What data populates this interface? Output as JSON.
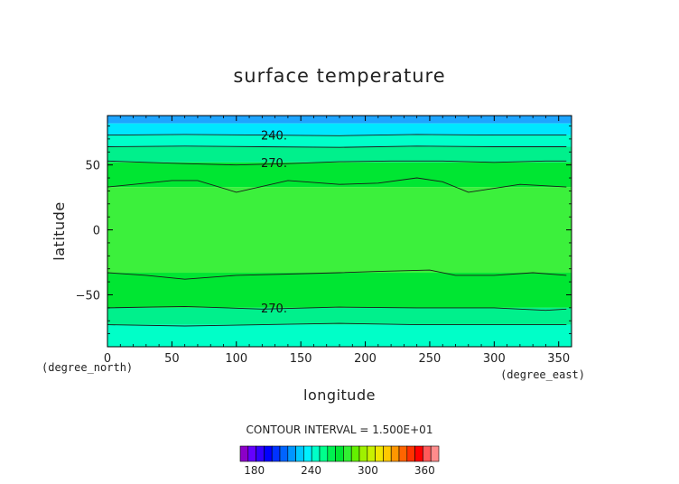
{
  "chart_data": {
    "type": "heatmap",
    "title": "surface temperature",
    "xlabel": "longitude",
    "ylabel": "latitude",
    "x_units": "(degree_east)",
    "y_units": "(degree_north)",
    "xlim": [
      0,
      360
    ],
    "ylim": [
      -90,
      88
    ],
    "x_ticks": [
      "0",
      "50",
      "100",
      "150",
      "200",
      "250",
      "300",
      "350"
    ],
    "y_ticks": [
      "-50",
      "0",
      "50"
    ],
    "y_tick_values": [
      -50,
      0,
      50
    ],
    "x_tick_values": [
      0,
      50,
      100,
      150,
      200,
      250,
      300,
      350
    ],
    "contour_interval_text": "CONTOUR INTERVAL = 1.500E+01",
    "contour_levels": [
      165,
      180,
      195,
      210,
      225,
      240,
      255,
      270,
      285,
      300,
      315,
      330,
      345,
      360,
      375
    ],
    "contour_labels": [
      {
        "text": "240.",
        "x": 118,
        "y": 73
      },
      {
        "text": "270.",
        "x": 118,
        "y": 52
      },
      {
        "text": "270.",
        "x": 118,
        "y": -60
      }
    ],
    "field_bands": [
      {
        "lat_top": 88,
        "lat_bottom": 82,
        "color": "#1ea4ff"
      },
      {
        "lat_top": 82,
        "lat_bottom": 73,
        "color": "#00e6ff"
      },
      {
        "lat_top": 73,
        "lat_bottom": 64,
        "color": "#00ffc8"
      },
      {
        "lat_top": 64,
        "lat_bottom": 52,
        "color": "#00f08c"
      },
      {
        "lat_top": 52,
        "lat_bottom": 33,
        "color": "#00e632"
      },
      {
        "lat_top": 33,
        "lat_bottom": -33,
        "color": "#3cf03c"
      },
      {
        "lat_top": -33,
        "lat_bottom": -60,
        "color": "#00e632"
      },
      {
        "lat_top": -60,
        "lat_bottom": -73,
        "color": "#00f08c"
      },
      {
        "lat_top": -73,
        "lat_bottom": -90,
        "color": "#00ffc8"
      }
    ],
    "contour_lines": [
      {
        "level": 240,
        "points": [
          [
            0,
            73
          ],
          [
            60,
            73.5
          ],
          [
            120,
            73
          ],
          [
            180,
            72.5
          ],
          [
            240,
            73.5
          ],
          [
            300,
            73
          ],
          [
            356,
            73
          ]
        ]
      },
      {
        "level": 255,
        "points": [
          [
            0,
            64
          ],
          [
            60,
            64.5
          ],
          [
            120,
            64
          ],
          [
            180,
            63.5
          ],
          [
            240,
            64.5
          ],
          [
            300,
            64
          ],
          [
            356,
            64
          ]
        ]
      },
      {
        "level": 270,
        "points": [
          [
            0,
            53
          ],
          [
            30,
            52
          ],
          [
            60,
            51
          ],
          [
            100,
            50
          ],
          [
            140,
            51
          ],
          [
            180,
            52.5
          ],
          [
            220,
            53
          ],
          [
            260,
            53
          ],
          [
            300,
            52
          ],
          [
            340,
            53
          ],
          [
            356,
            53
          ]
        ]
      },
      {
        "level": 285,
        "points": [
          [
            0,
            33
          ],
          [
            30,
            36
          ],
          [
            50,
            38
          ],
          [
            70,
            38
          ],
          [
            100,
            29
          ],
          [
            140,
            38
          ],
          [
            180,
            35
          ],
          [
            210,
            36
          ],
          [
            240,
            40
          ],
          [
            260,
            37
          ],
          [
            280,
            29
          ],
          [
            320,
            35
          ],
          [
            356,
            33
          ]
        ]
      },
      {
        "level": 285,
        "points": [
          [
            0,
            -33
          ],
          [
            30,
            -35
          ],
          [
            60,
            -38
          ],
          [
            100,
            -35
          ],
          [
            140,
            -34
          ],
          [
            180,
            -33
          ],
          [
            210,
            -32
          ],
          [
            250,
            -31
          ],
          [
            270,
            -35
          ],
          [
            300,
            -35
          ],
          [
            330,
            -33
          ],
          [
            356,
            -35
          ]
        ]
      },
      {
        "level": 270,
        "points": [
          [
            0,
            -60
          ],
          [
            60,
            -59
          ],
          [
            120,
            -61
          ],
          [
            180,
            -59.5
          ],
          [
            240,
            -60
          ],
          [
            300,
            -60
          ],
          [
            340,
            -62
          ],
          [
            356,
            -61
          ]
        ]
      },
      {
        "level": 255,
        "points": [
          [
            0,
            -73
          ],
          [
            60,
            -74
          ],
          [
            120,
            -73
          ],
          [
            180,
            -72
          ],
          [
            240,
            -73
          ],
          [
            300,
            -73
          ],
          [
            356,
            -73
          ]
        ]
      }
    ],
    "colorbar": {
      "ticks": [
        "180",
        "240",
        "300",
        "360"
      ],
      "tick_values": [
        180,
        240,
        300,
        360
      ],
      "range": [
        165,
        375
      ],
      "colors": [
        "#8c00c8",
        "#6400ff",
        "#3200ff",
        "#0000ff",
        "#0032ff",
        "#0064ff",
        "#0096ff",
        "#00c8ff",
        "#00f0ff",
        "#00ffc8",
        "#00ff8c",
        "#00f050",
        "#00e632",
        "#32f032",
        "#64f000",
        "#a0f000",
        "#c8f000",
        "#f0e600",
        "#ffc800",
        "#ff9600",
        "#ff6400",
        "#ff3200",
        "#ff0000",
        "#ff5a5a",
        "#ff8c8c"
      ]
    }
  }
}
